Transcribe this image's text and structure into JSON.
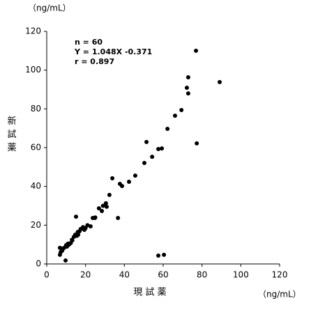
{
  "chart_data": {
    "type": "scatter",
    "y_unit_label": "（ng/mL）",
    "y_label": "新試薬",
    "x_label": "現 試 薬",
    "x_unit_label": "（ng/mL）",
    "annotations": [
      "n = 60",
      "Y = 1.048X -0.371",
      "r = 0.897"
    ],
    "color": "#000000",
    "x": [
      6.8,
      7.2,
      6.8,
      7.9,
      8.3,
      9.0,
      9.7,
      10,
      11.5,
      12.4,
      13.2,
      14.0,
      14.7,
      15.1,
      16.2,
      16.9,
      18.3,
      18.7,
      19.4,
      22.6,
      23.7,
      24.8,
      26.9,
      28.4,
      30.5,
      30.9,
      32.3,
      33.8,
      36.7,
      37.7,
      38.8,
      42.4,
      45.6,
      50.3,
      51.4,
      54.3,
      57.5,
      59.3,
      57.5,
      60.4,
      62.2,
      66.1,
      69.4,
      72.2,
      72.9,
      72.9,
      76.9,
      77.3,
      89.1,
      8,
      10.5,
      15.5,
      17.5,
      20,
      13,
      11,
      21,
      25,
      29,
      16
    ],
    "values": [
      8.3,
      6.1,
      4.7,
      6.8,
      7.9,
      8.3,
      1.8,
      9.7,
      10,
      10.8,
      12.2,
      14.0,
      15.1,
      24.4,
      15.1,
      16.9,
      18.3,
      19.0,
      17.6,
      19.4,
      23.7,
      23.7,
      28.7,
      27.3,
      31.3,
      29.5,
      35.6,
      44.2,
      23.7,
      41.3,
      40.2,
      42.4,
      45.6,
      52.1,
      62.9,
      55.3,
      59.3,
      59.6,
      4.3,
      4.7,
      69.7,
      76.5,
      79.4,
      90.9,
      96.3,
      88.0,
      110,
      62.2,
      93.8,
      7,
      9,
      14.5,
      18,
      18.5,
      12.5,
      10.5,
      20,
      24,
      30,
      16.5
    ],
    "xlim": [
      0,
      120
    ],
    "ylim": [
      0,
      120
    ],
    "xticks": [
      0,
      20,
      40,
      60,
      80,
      100,
      120
    ],
    "yticks": [
      0,
      20,
      40,
      60,
      80,
      100,
      120
    ]
  }
}
